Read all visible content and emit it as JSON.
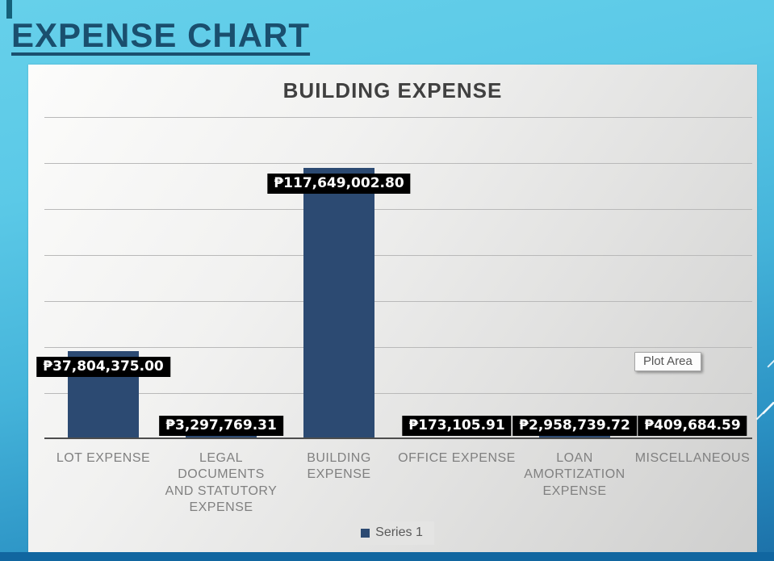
{
  "slide": {
    "title": "EXPENSE CHART"
  },
  "chart": {
    "title": "BUILDING EXPENSE",
    "legend_label": "Series 1",
    "tooltip": "Plot Area",
    "bar_color": "#2c4a72",
    "data_label_bg": "#000000",
    "data_label_color": "#ffffff"
  },
  "chart_data": {
    "type": "bar",
    "title": "BUILDING EXPENSE",
    "categories": [
      "LOT EXPENSE",
      "LEGAL\nDOCUMENTS\nAND STATUTORY\nEXPENSE",
      "BUILDING\nEXPENSE",
      "OFFICE EXPENSE",
      "LOAN\nAMORTIZATION\nEXPENSE",
      "MISCELLANEOUS"
    ],
    "series": [
      {
        "name": "Series 1",
        "values": [
          37804375.0,
          3297769.31,
          117649002.8,
          173105.91,
          2958739.72,
          409684.59
        ]
      }
    ],
    "data_labels": [
      "₱37,804,375.00",
      "₱3,297,769.31",
      "₱117,649,002.80",
      "₱173,105.91",
      "₱2,958,739.72",
      "₱409,684.59"
    ],
    "xlabel": "",
    "ylabel": "",
    "ylim": [
      0,
      140000000
    ],
    "gridline_interval": 20000000,
    "grid": true,
    "legend_position": "bottom"
  }
}
